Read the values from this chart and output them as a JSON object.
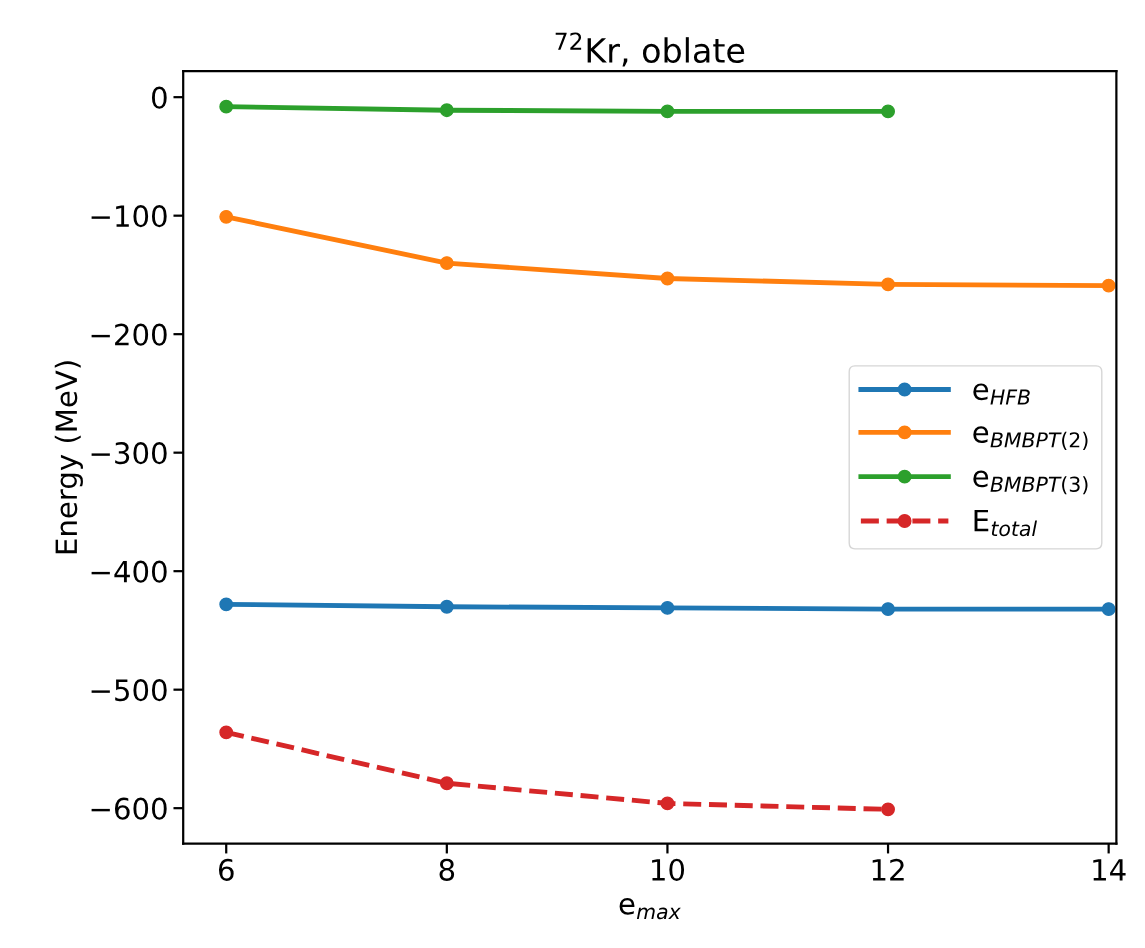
{
  "chart_data": {
    "type": "line",
    "title": "$^{72}$Kr, oblate",
    "xlabel": "e$_{max}$",
    "ylabel": "Energy (MeV)",
    "xlim": [
      5.61,
      14.07
    ],
    "ylim": [
      -630,
      22
    ],
    "xticks": [
      6,
      8,
      10,
      12,
      14
    ],
    "yticks": [
      -600,
      -500,
      -400,
      -300,
      -200,
      -100,
      0
    ],
    "legend": "center right",
    "marker": "circle",
    "grid": false,
    "series": [
      {
        "name": "e$_{HFB}$",
        "color": "#1f77b4",
        "x": [
          6,
          8,
          10,
          12,
          14
        ],
        "values": [
          -428,
          -430,
          -431,
          -432,
          -432
        ],
        "line_style": "solid"
      },
      {
        "name": "e$_{BMBPT(2)}$",
        "color": "#ff7f0e",
        "x": [
          6,
          8,
          10,
          12,
          14
        ],
        "values": [
          -101,
          -140,
          -153,
          -158,
          -159
        ],
        "line_style": "solid"
      },
      {
        "name": "e$_{BMBPT(3)}$",
        "color": "#2ca02c",
        "x": [
          6,
          8,
          10,
          12
        ],
        "values": [
          -8,
          -11,
          -12,
          -12
        ],
        "line_style": "solid"
      },
      {
        "name": "E$_{total}$",
        "color": "#d62728",
        "x": [
          6,
          8,
          10,
          12
        ],
        "values": [
          -536,
          -579,
          -596,
          -601
        ],
        "line_style": "dashed"
      }
    ]
  }
}
